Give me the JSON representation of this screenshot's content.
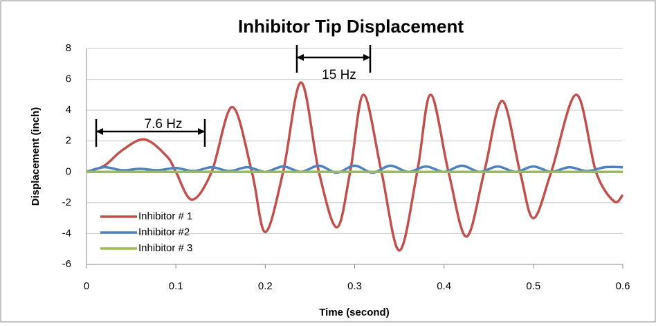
{
  "chart_data": {
    "type": "line",
    "title": "Inhibitor Tip Displacement",
    "x_label": "Time (second)",
    "y_label": "Displacement (inch)",
    "xlim": [
      0,
      0.6
    ],
    "xticks": [
      0,
      0.1,
      0.2,
      0.3,
      0.4,
      0.5,
      0.6
    ],
    "ylim": [
      -6,
      8
    ],
    "yticks": [
      -6,
      -4,
      -2,
      0,
      2,
      4,
      6,
      8
    ],
    "grid": true,
    "legend": "lower left",
    "annotations": [
      "7.6 Hz",
      "15 Hz"
    ],
    "series": [
      {
        "name": "Inhibitor # 1",
        "color": "#c0504d",
        "x": [
          0,
          0.02,
          0.04,
          0.065,
          0.09,
          0.1,
          0.118,
          0.14,
          0.163,
          0.185,
          0.2,
          0.22,
          0.24,
          0.26,
          0.28,
          0.295,
          0.31,
          0.33,
          0.35,
          0.37,
          0.385,
          0.405,
          0.425,
          0.445,
          0.465,
          0.485,
          0.5,
          0.52,
          0.548,
          0.57,
          0.59,
          0.6
        ],
        "values": [
          0,
          0.4,
          1.4,
          2.1,
          1.0,
          0,
          -1.8,
          0,
          4.2,
          0,
          -3.9,
          0,
          5.8,
          0,
          -3.6,
          0,
          5.0,
          0,
          -5.1,
          0,
          5.0,
          0,
          -4.2,
          0,
          4.6,
          0,
          -3.0,
          0,
          5.0,
          0,
          -1.9,
          -1.5
        ]
      },
      {
        "name": "Inhibitor #2",
        "color": "#4f81bd",
        "x": [
          0,
          0.02,
          0.04,
          0.06,
          0.08,
          0.1,
          0.12,
          0.14,
          0.16,
          0.18,
          0.2,
          0.22,
          0.24,
          0.26,
          0.28,
          0.3,
          0.32,
          0.34,
          0.36,
          0.38,
          0.4,
          0.42,
          0.44,
          0.46,
          0.48,
          0.5,
          0.52,
          0.54,
          0.56,
          0.58,
          0.6
        ],
        "values": [
          0,
          0.3,
          0.1,
          0.2,
          0.1,
          0.25,
          0.05,
          0.3,
          0.05,
          0.3,
          0.0,
          0.35,
          0.0,
          0.4,
          -0.05,
          0.4,
          -0.05,
          0.4,
          0,
          0.35,
          0,
          0.4,
          0,
          0.35,
          0,
          0.35,
          0,
          0.3,
          0.05,
          0.3,
          0.3
        ]
      },
      {
        "name": "Inhibitor # 3",
        "color": "#9bbb59",
        "x": [
          0,
          0.6
        ],
        "values": [
          0,
          0
        ]
      }
    ]
  }
}
